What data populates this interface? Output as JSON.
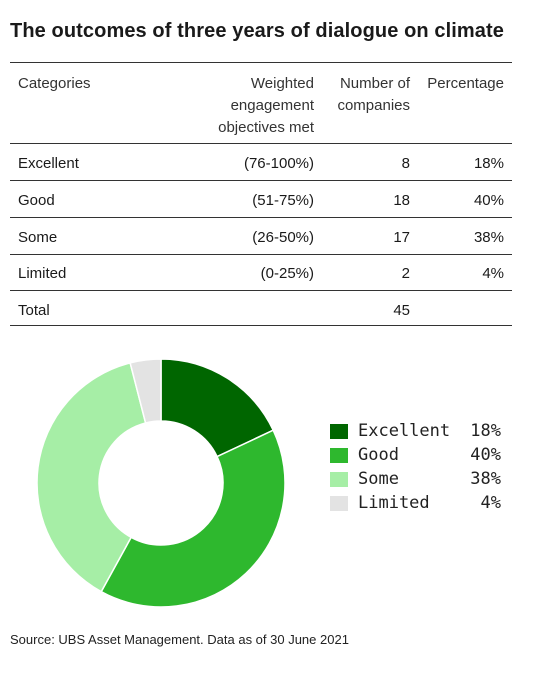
{
  "title": "The outcomes of three years of dialogue on climate",
  "table": {
    "headers": {
      "categories": "Categories",
      "weighted": [
        "Weighted",
        "engagement",
        "objectives met"
      ],
      "companies": [
        "Number of",
        "companies"
      ],
      "percentage": "Percentage"
    },
    "rows": [
      {
        "category": "Excellent",
        "range": "(76-100%)",
        "companies": "8",
        "percentage": "18%"
      },
      {
        "category": "Good",
        "range": "(51-75%)",
        "companies": "18",
        "percentage": "40%"
      },
      {
        "category": "Some",
        "range": "(26-50%)",
        "companies": "17",
        "percentage": "38%"
      },
      {
        "category": "Limited",
        "range": "(0-25%)",
        "companies": "2",
        "percentage": "4%"
      },
      {
        "category": "Total",
        "range": "",
        "companies": "45",
        "percentage": ""
      }
    ]
  },
  "chart_data": {
    "type": "pie",
    "donut": true,
    "categories": [
      "Excellent",
      "Good",
      "Some",
      "Limited"
    ],
    "values": [
      18,
      40,
      38,
      4
    ],
    "value_labels": [
      "18%",
      "40%",
      "38%",
      "4%"
    ],
    "colors": [
      "#006600",
      "#2eb82e",
      "#a6eea6",
      "#e3e3e3"
    ],
    "legend_position": "right"
  },
  "source": "Source: UBS Asset Management. Data as of 30 June 2021"
}
